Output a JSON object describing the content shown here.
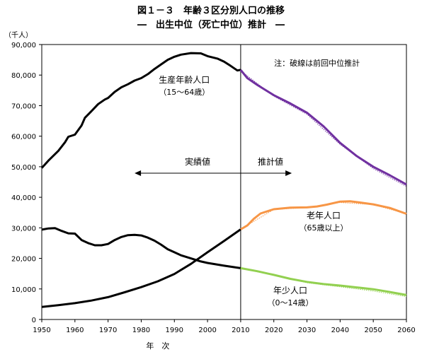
{
  "chart_data": {
    "type": "line",
    "title": "図１－３　年齢３区分別人口の推移",
    "subtitle": "―　出生中位（死亡中位）推計　―",
    "ylabel": "（千人）",
    "xlabel": "年　次",
    "xlim": [
      1950,
      2060
    ],
    "ylim": [
      0,
      90000
    ],
    "x_ticks": [
      "1950",
      "1960",
      "1970",
      "1980",
      "1990",
      "2000",
      "2010",
      "2020",
      "2030",
      "2040",
      "2050",
      "2060"
    ],
    "y_ticks": [
      "0",
      "10,000",
      "20,000",
      "30,000",
      "40,000",
      "50,000",
      "60,000",
      "70,000",
      "80,000",
      "90,000"
    ],
    "grid": false,
    "divider_year": 2010,
    "annotations": {
      "note": "注：破線は前回中位推計",
      "actual": "実績値",
      "projected": "推計値"
    },
    "series": [
      {
        "name": "生産年齢人口",
        "range_label": "（15～64歳）",
        "actual_color": "#000000",
        "projection_color": "#7030a0",
        "actual": [
          [
            1950,
            49600
          ],
          [
            1952,
            52000
          ],
          [
            1955,
            55200
          ],
          [
            1957,
            58000
          ],
          [
            1958,
            59800
          ],
          [
            1960,
            60500
          ],
          [
            1962,
            63500
          ],
          [
            1963,
            66000
          ],
          [
            1965,
            68200
          ],
          [
            1967,
            70500
          ],
          [
            1969,
            72000
          ],
          [
            1970,
            72500
          ],
          [
            1972,
            74500
          ],
          [
            1974,
            76000
          ],
          [
            1976,
            77000
          ],
          [
            1978,
            78200
          ],
          [
            1980,
            79000
          ],
          [
            1982,
            80300
          ],
          [
            1984,
            82000
          ],
          [
            1986,
            83500
          ],
          [
            1988,
            85000
          ],
          [
            1990,
            86000
          ],
          [
            1992,
            86700
          ],
          [
            1995,
            87200
          ],
          [
            1998,
            87100
          ],
          [
            2000,
            86200
          ],
          [
            2003,
            85400
          ],
          [
            2005,
            84400
          ],
          [
            2007,
            83000
          ],
          [
            2009,
            81500
          ],
          [
            2010,
            81700
          ]
        ],
        "projection": [
          [
            2010,
            81700
          ],
          [
            2012,
            79000
          ],
          [
            2015,
            76800
          ],
          [
            2020,
            73400
          ],
          [
            2025,
            70700
          ],
          [
            2030,
            67700
          ],
          [
            2035,
            63200
          ],
          [
            2040,
            57800
          ],
          [
            2045,
            53500
          ],
          [
            2050,
            50000
          ],
          [
            2055,
            47200
          ],
          [
            2060,
            44200
          ]
        ],
        "previous": [
          [
            2010,
            81400
          ],
          [
            2020,
            73100
          ],
          [
            2030,
            67200
          ],
          [
            2040,
            57300
          ],
          [
            2050,
            49400
          ],
          [
            2060,
            43600
          ]
        ]
      },
      {
        "name": "老年人口",
        "range_label": "（65歳以上）",
        "actual_color": "#000000",
        "projection_color": "#f79646",
        "actual": [
          [
            1950,
            4100
          ],
          [
            1955,
            4700
          ],
          [
            1960,
            5350
          ],
          [
            1965,
            6200
          ],
          [
            1970,
            7300
          ],
          [
            1975,
            8900
          ],
          [
            1980,
            10600
          ],
          [
            1985,
            12500
          ],
          [
            1990,
            14900
          ],
          [
            1995,
            18200
          ],
          [
            2000,
            22000
          ],
          [
            2005,
            25700
          ],
          [
            2010,
            29500
          ]
        ],
        "projection": [
          [
            2010,
            29500
          ],
          [
            2012,
            30800
          ],
          [
            2014,
            33000
          ],
          [
            2016,
            34700
          ],
          [
            2020,
            36100
          ],
          [
            2025,
            36600
          ],
          [
            2030,
            36700
          ],
          [
            2033,
            37000
          ],
          [
            2036,
            37600
          ],
          [
            2040,
            38600
          ],
          [
            2043,
            38700
          ],
          [
            2046,
            38300
          ],
          [
            2050,
            37700
          ],
          [
            2055,
            36500
          ],
          [
            2060,
            34600
          ]
        ],
        "previous": [
          [
            2010,
            29600
          ],
          [
            2020,
            36000
          ],
          [
            2030,
            36600
          ],
          [
            2040,
            38300
          ],
          [
            2050,
            37600
          ],
          [
            2060,
            34600
          ]
        ]
      },
      {
        "name": "年少人口",
        "range_label": "（0～14歳）",
        "actual_color": "#000000",
        "projection_color": "#92d050",
        "actual": [
          [
            1950,
            29400
          ],
          [
            1952,
            29800
          ],
          [
            1954,
            29900
          ],
          [
            1956,
            29000
          ],
          [
            1958,
            28200
          ],
          [
            1960,
            28100
          ],
          [
            1962,
            26000
          ],
          [
            1964,
            25000
          ],
          [
            1966,
            24300
          ],
          [
            1968,
            24300
          ],
          [
            1970,
            24700
          ],
          [
            1972,
            26000
          ],
          [
            1974,
            27000
          ],
          [
            1976,
            27600
          ],
          [
            1978,
            27700
          ],
          [
            1980,
            27500
          ],
          [
            1982,
            26800
          ],
          [
            1984,
            25800
          ],
          [
            1986,
            24500
          ],
          [
            1988,
            23000
          ],
          [
            1990,
            22000
          ],
          [
            1992,
            21000
          ],
          [
            1995,
            20000
          ],
          [
            1998,
            19000
          ],
          [
            2000,
            18500
          ],
          [
            2005,
            17600
          ],
          [
            2010,
            16800
          ]
        ],
        "projection": [
          [
            2010,
            16800
          ],
          [
            2015,
            15800
          ],
          [
            2020,
            14600
          ],
          [
            2025,
            13300
          ],
          [
            2030,
            12300
          ],
          [
            2035,
            11600
          ],
          [
            2040,
            11100
          ],
          [
            2045,
            10500
          ],
          [
            2050,
            9900
          ],
          [
            2055,
            9000
          ],
          [
            2060,
            8000
          ]
        ],
        "previous": [
          [
            2010,
            16700
          ],
          [
            2020,
            14500
          ],
          [
            2030,
            12000
          ],
          [
            2040,
            10700
          ],
          [
            2050,
            9300
          ],
          [
            2060,
            7500
          ]
        ]
      }
    ]
  }
}
